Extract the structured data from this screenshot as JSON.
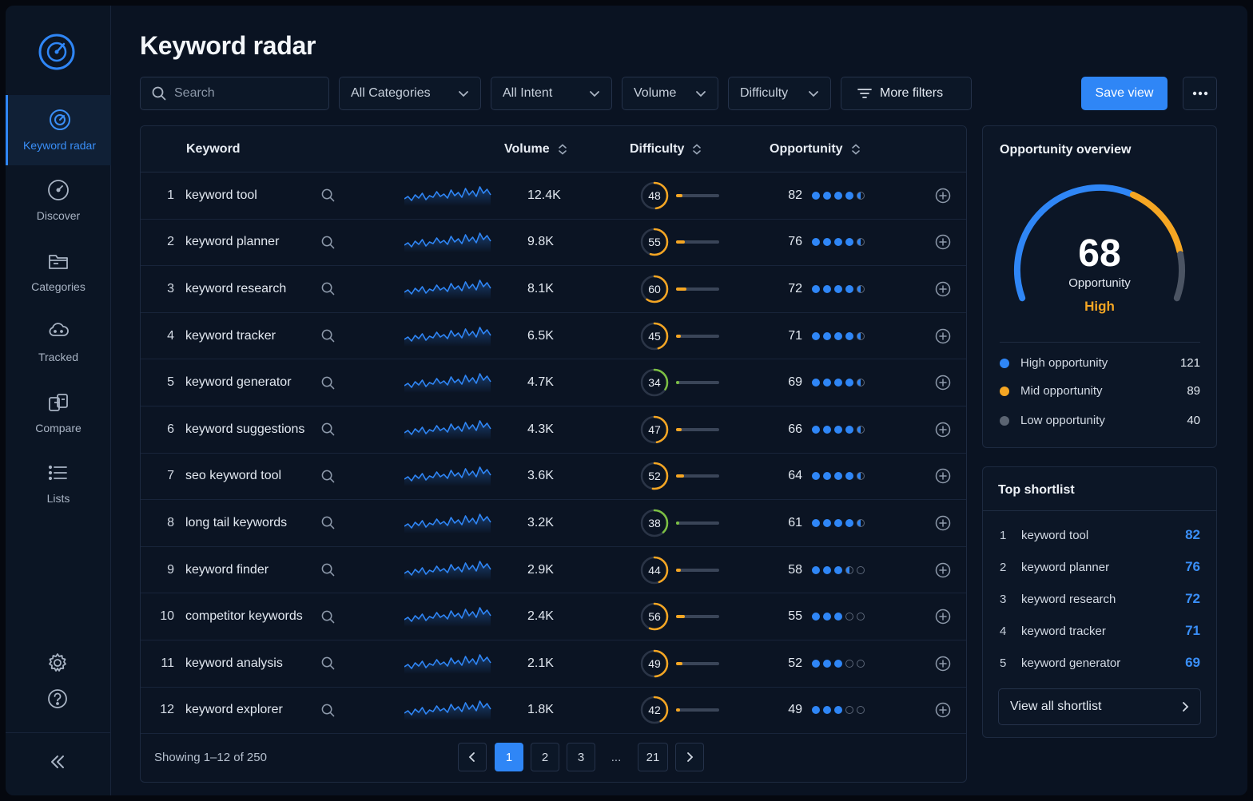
{
  "sidebar": {
    "items": [
      {
        "label": "Keyword radar",
        "icon": "radar-icon",
        "active": true
      },
      {
        "label": "Discover",
        "icon": "compass-icon",
        "active": false
      },
      {
        "label": "Categories",
        "icon": "folder-icon",
        "active": false
      },
      {
        "label": "Tracked",
        "icon": "cloud-icon",
        "active": false
      },
      {
        "label": "Compare",
        "icon": "compare-icon",
        "active": false
      },
      {
        "label": "Lists",
        "icon": "list-icon",
        "active": false
      }
    ],
    "bottom_icons": [
      "gear-icon",
      "help-icon",
      "collapse-icon"
    ]
  },
  "header": {
    "title": "Keyword radar"
  },
  "toolbar": {
    "search_placeholder": "Search",
    "categories": "All Categories",
    "intent": "All Intent",
    "volume": "Volume",
    "difficulty": "Difficulty",
    "more_filters": "More filters",
    "save_view": "Save view"
  },
  "table": {
    "columns": {
      "keyword": "Keyword",
      "volume": "Volume",
      "difficulty": "Difficulty",
      "opportunity": "Opportunity"
    },
    "rows": [
      {
        "rank": "1",
        "keyword": "keyword tool",
        "volume": "12.4K",
        "difficulty": 48,
        "opportunity": 82,
        "dots": 4.5
      },
      {
        "rank": "2",
        "keyword": "keyword planner",
        "volume": "9.8K",
        "difficulty": 55,
        "opportunity": 76,
        "dots": 4.5
      },
      {
        "rank": "3",
        "keyword": "keyword research",
        "volume": "8.1K",
        "difficulty": 60,
        "opportunity": 72,
        "dots": 4.5
      },
      {
        "rank": "4",
        "keyword": "keyword tracker",
        "volume": "6.5K",
        "difficulty": 45,
        "opportunity": 71,
        "dots": 4.5
      },
      {
        "rank": "5",
        "keyword": "keyword generator",
        "volume": "4.7K",
        "difficulty": 34,
        "opportunity": 69,
        "dots": 4.5
      },
      {
        "rank": "6",
        "keyword": "keyword suggestions",
        "volume": "4.3K",
        "difficulty": 47,
        "opportunity": 66,
        "dots": 4.5
      },
      {
        "rank": "7",
        "keyword": "seo keyword tool",
        "volume": "3.6K",
        "difficulty": 52,
        "opportunity": 64,
        "dots": 4.5
      },
      {
        "rank": "8",
        "keyword": "long tail keywords",
        "volume": "3.2K",
        "difficulty": 38,
        "opportunity": 61,
        "dots": 4.5
      },
      {
        "rank": "9",
        "keyword": "keyword finder",
        "volume": "2.9K",
        "difficulty": 44,
        "opportunity": 58,
        "dots": 3.5
      },
      {
        "rank": "10",
        "keyword": "competitor keywords",
        "volume": "2.4K",
        "difficulty": 56,
        "opportunity": 55,
        "dots": 3
      },
      {
        "rank": "11",
        "keyword": "keyword analysis",
        "volume": "2.1K",
        "difficulty": 49,
        "opportunity": 52,
        "dots": 3
      },
      {
        "rank": "12",
        "keyword": "keyword explorer",
        "volume": "1.8K",
        "difficulty": 42,
        "opportunity": 49,
        "dots": 3
      }
    ],
    "footer": {
      "showing": "Showing 1–12 of 250",
      "pages": [
        "1",
        "2",
        "3",
        "21"
      ],
      "ellipsis": "...",
      "current_page": "1"
    }
  },
  "overview": {
    "title": "Opportunity overview",
    "score": "68",
    "score_label": "Opportunity",
    "level": "High",
    "gauge_fill": 0.68,
    "legend": [
      {
        "label": "High opportunity",
        "count": "121",
        "color": "#2f86f6"
      },
      {
        "label": "Mid opportunity",
        "count": "89",
        "color": "#f5a623"
      },
      {
        "label": "Low opportunity",
        "count": "40",
        "color": "#5b6472"
      }
    ]
  },
  "shortlist": {
    "title": "Top shortlist",
    "items": [
      {
        "rank": "1",
        "keyword": "keyword tool",
        "score": "82"
      },
      {
        "rank": "2",
        "keyword": "keyword planner",
        "score": "76"
      },
      {
        "rank": "3",
        "keyword": "keyword research",
        "score": "72"
      },
      {
        "rank": "4",
        "keyword": "keyword tracker",
        "score": "71"
      },
      {
        "rank": "5",
        "keyword": "keyword generator",
        "score": "69"
      }
    ],
    "view_all": "View all shortlist"
  },
  "colors": {
    "accent": "#2f86f6",
    "orange": "#f5a623",
    "green": "#7cc043",
    "background": "#0a1322"
  }
}
